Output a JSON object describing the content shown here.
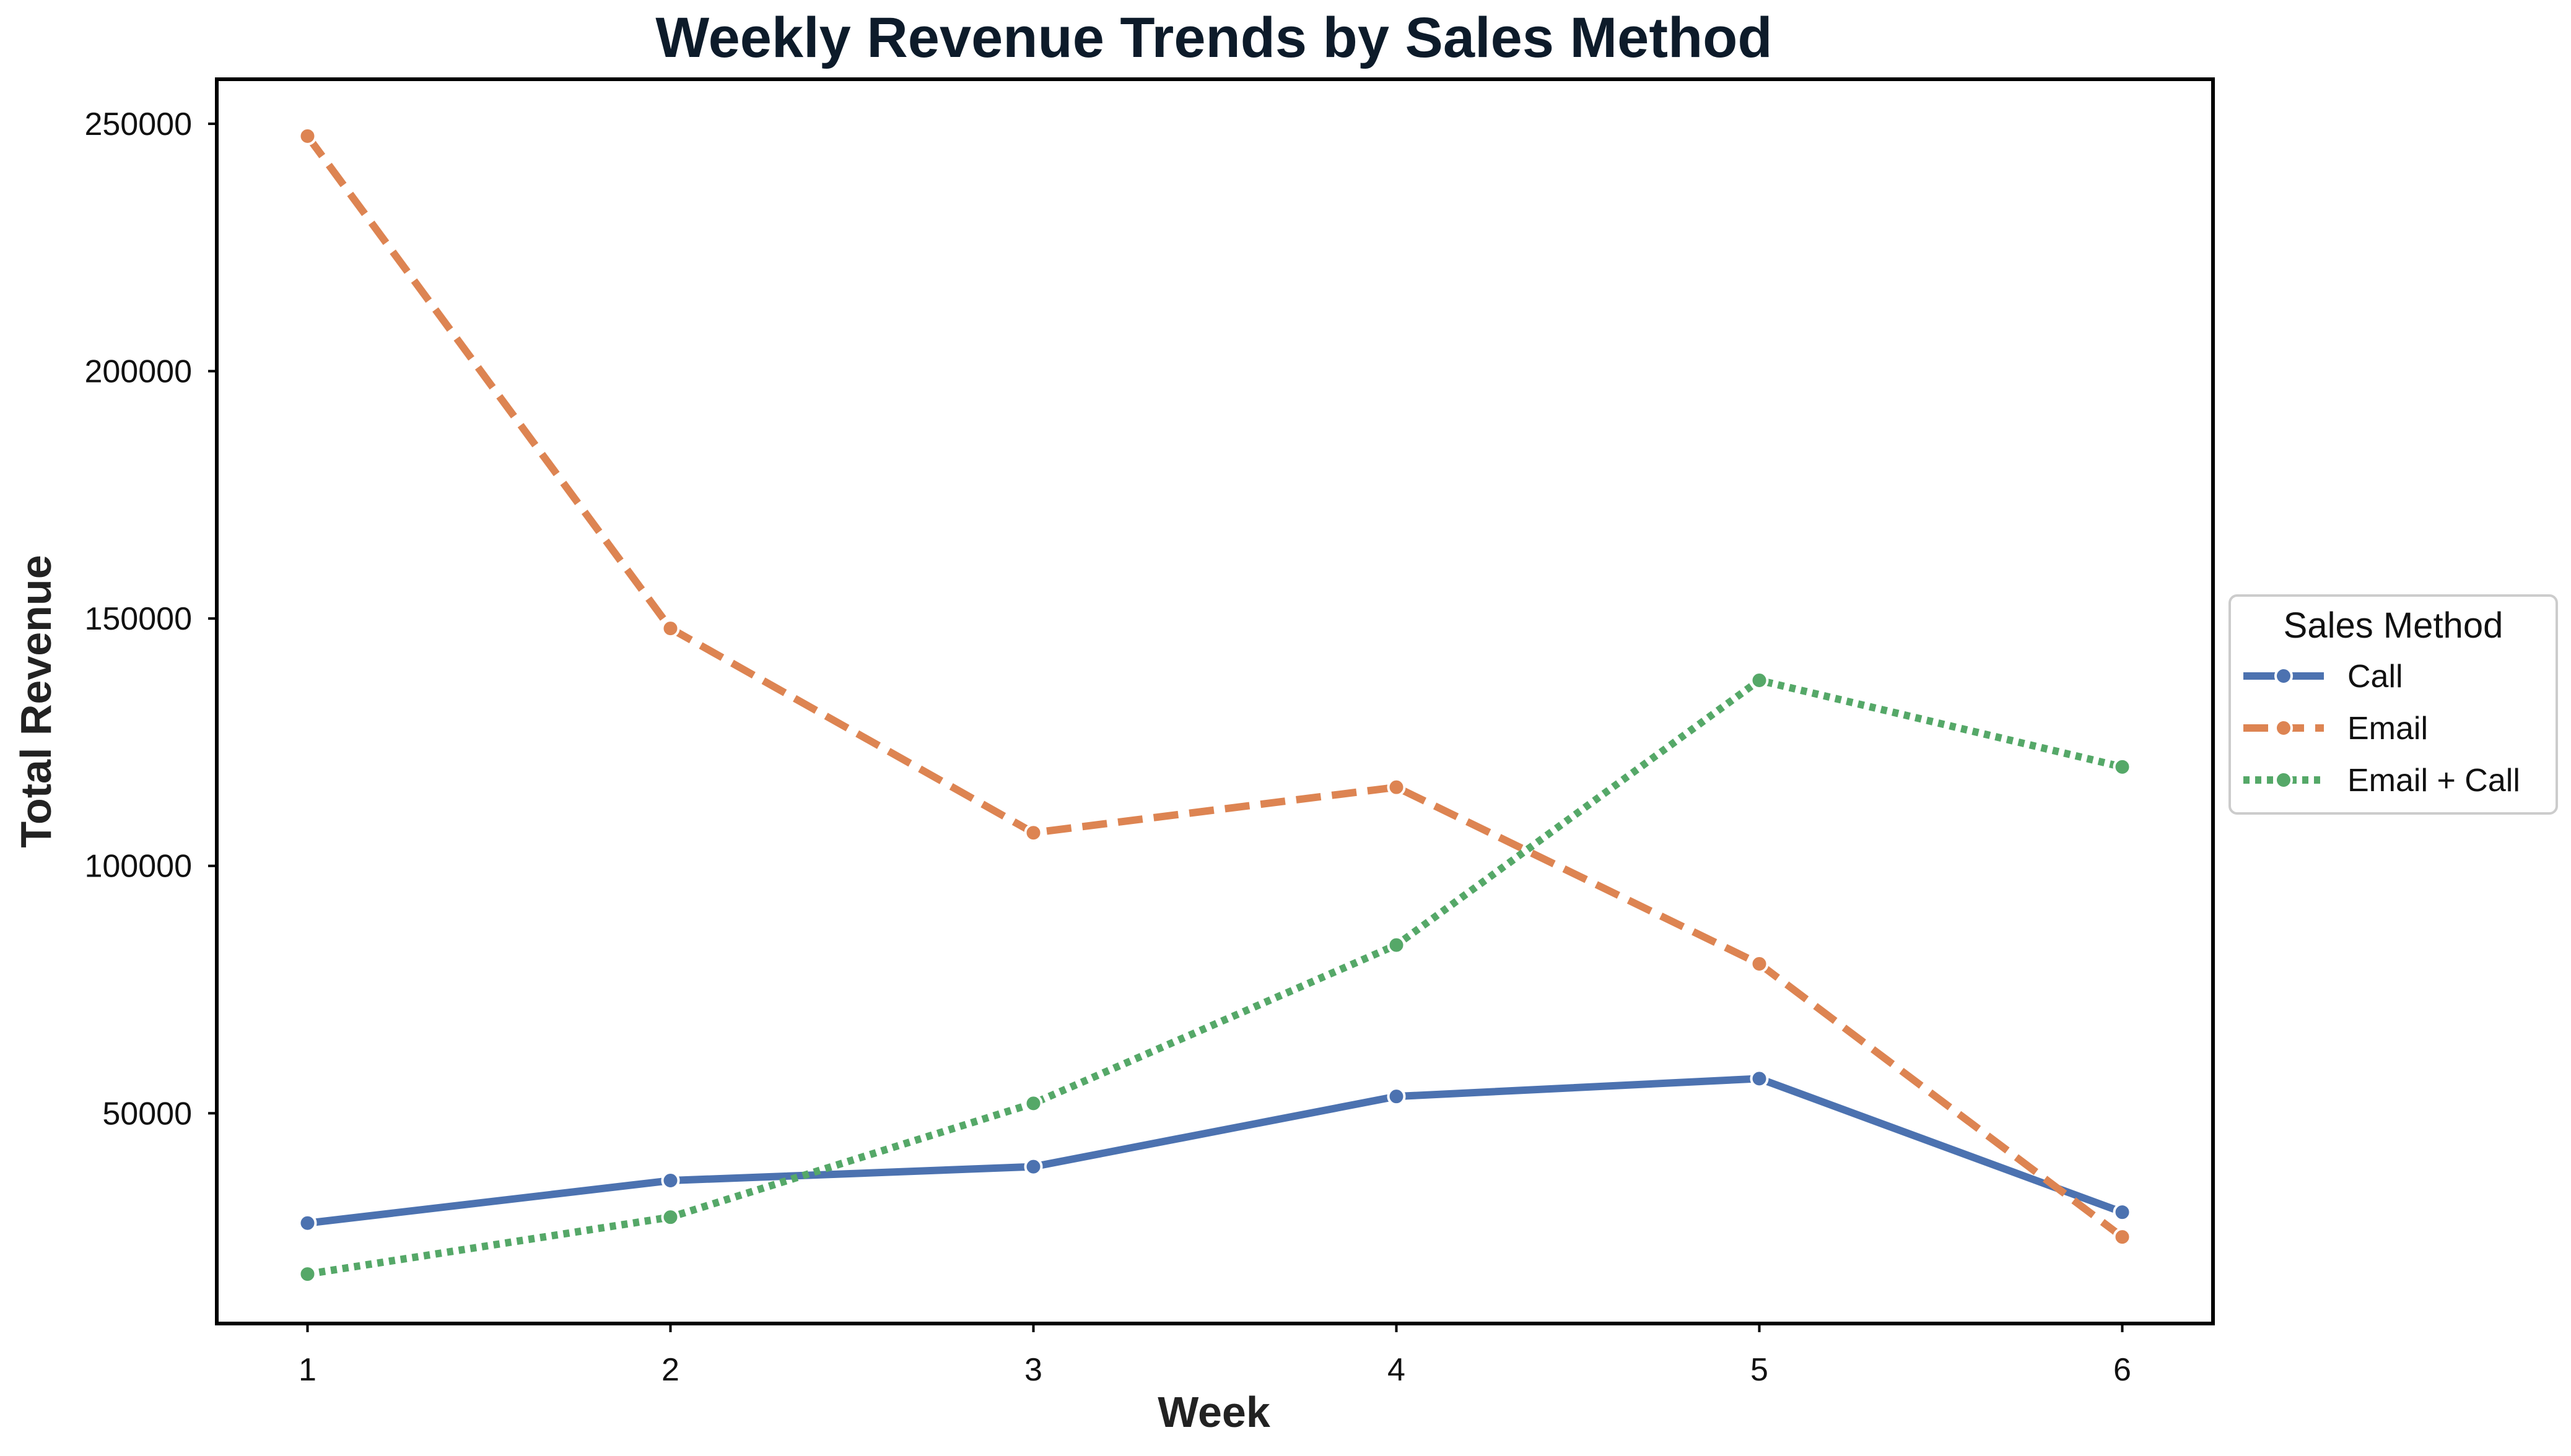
{
  "chart_data": {
    "type": "line",
    "title": "Weekly Revenue Trends by Sales Method",
    "xlabel": "Week",
    "ylabel": "Total Revenue",
    "x": [
      1,
      2,
      3,
      4,
      5,
      6
    ],
    "xticks": [
      "1",
      "2",
      "3",
      "4",
      "5",
      "6"
    ],
    "yticks": [
      50000,
      100000,
      150000,
      200000,
      250000
    ],
    "ytick_labels": [
      "50000",
      "100000",
      "150000",
      "200000",
      "250000"
    ],
    "xlim": [
      0.75,
      6.25
    ],
    "ylim": [
      7500,
      259000
    ],
    "grid": false,
    "legend": {
      "title": "Sales Method",
      "placement": "outside-right"
    },
    "series": [
      {
        "name": "Call",
        "color": "#4c72b0",
        "style": "solid",
        "values": [
          27800,
          36400,
          39200,
          53400,
          57000,
          30000
        ]
      },
      {
        "name": "Email",
        "color": "#dd8452",
        "style": "dashed",
        "values": [
          247500,
          148000,
          106700,
          115900,
          80200,
          25000
        ]
      },
      {
        "name": "Email + Call",
        "color": "#55a868",
        "style": "dotted",
        "values": [
          17500,
          29000,
          52000,
          84000,
          137500,
          120000
        ]
      }
    ]
  }
}
